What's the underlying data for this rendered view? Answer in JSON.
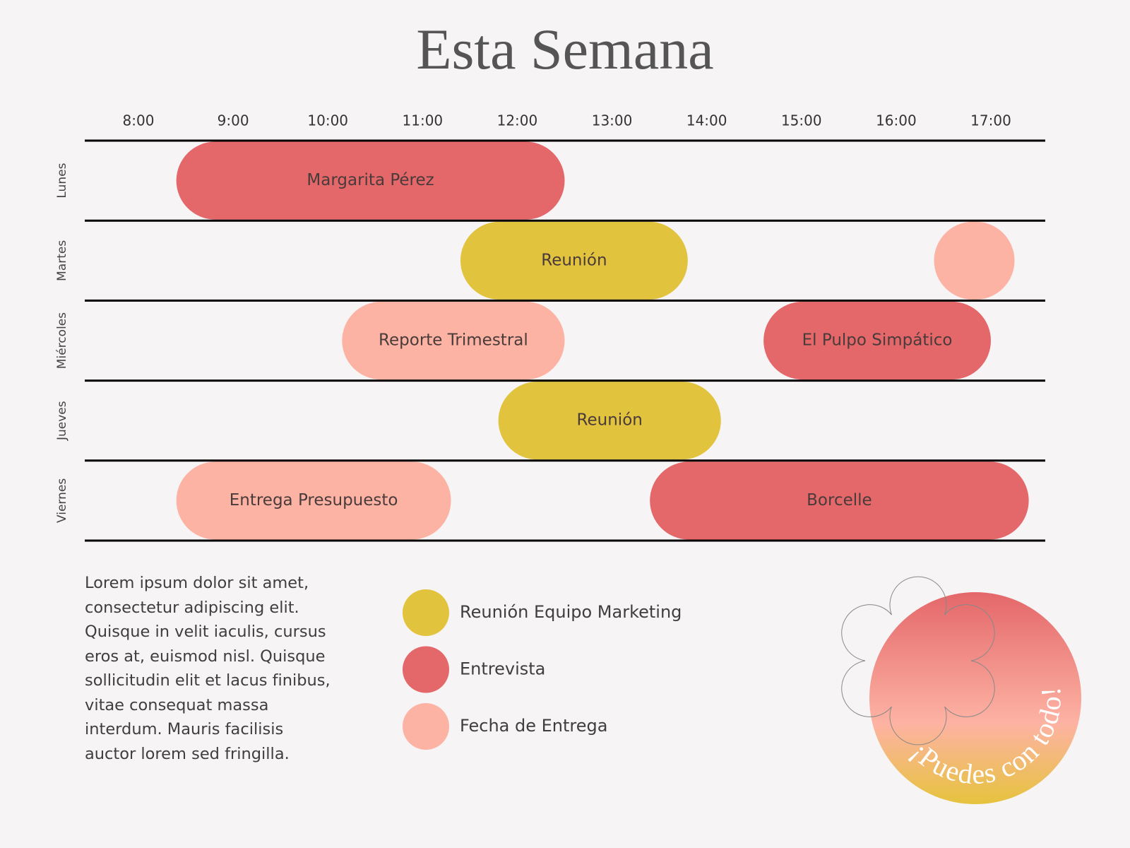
{
  "title": "Esta Semana",
  "hours": [
    {
      "value": 8,
      "label": "8:00"
    },
    {
      "value": 9,
      "label": "9:00"
    },
    {
      "value": 10,
      "label": "10:00"
    },
    {
      "value": 11,
      "label": "11:00"
    },
    {
      "value": 12,
      "label": "12:00"
    },
    {
      "value": 13,
      "label": "13:00"
    },
    {
      "value": 14,
      "label": "14:00"
    },
    {
      "value": 15,
      "label": "15:00"
    },
    {
      "value": 16,
      "label": "16:00"
    },
    {
      "value": 17,
      "label": "17:00"
    }
  ],
  "days": [
    {
      "name": "Lunes",
      "events": [
        {
          "label": "Margarita Pérez",
          "start": 8.4,
          "end": 12.5,
          "color": "#e4676a"
        }
      ]
    },
    {
      "name": "Martes",
      "events": [
        {
          "label": "Reunión",
          "start": 11.4,
          "end": 13.8,
          "color": "#e2c33d"
        },
        {
          "start": 16.4,
          "end": 17.25,
          "color": "#fdb3a3"
        }
      ]
    },
    {
      "name": "Miércoles",
      "events": [
        {
          "label": "Reporte Trimestral",
          "start": 10.15,
          "end": 12.5,
          "color": "#fdb3a3"
        },
        {
          "label": "El Pulpo Simpático",
          "start": 14.6,
          "end": 17,
          "color": "#e4676a"
        }
      ]
    },
    {
      "name": "Jueves",
      "events": [
        {
          "label": "Reunión",
          "start": 11.8,
          "end": 14.15,
          "color": "#e2c33d"
        }
      ]
    },
    {
      "name": "Viernes",
      "events": [
        {
          "label": "Entrega Presupuesto",
          "start": 8.4,
          "end": 11.3,
          "color": "#fdb3a3"
        },
        {
          "label": "Borcelle",
          "start": 13.4,
          "end": 17.4,
          "color": "#e4676a"
        }
      ]
    }
  ],
  "text": "Lorem ipsum dolor sit amet, consectetur adipiscing elit. Quisque in velit iaculis, cursus eros at, euismod nisl. Quisque sollicitudin elit et lacus finibus, vitae consequat massa interdum. Mauris facilisis auctor lorem sed fringilla.",
  "legend": [
    {
      "label": "Reunión Equipo Marketing",
      "color": "#e2c33d"
    },
    {
      "label": "Entrevista",
      "color": "#e4676a"
    },
    {
      "label": "Fecha de Entrega",
      "color": "#fdb3a3"
    }
  ],
  "badge": "¡Puedes con todo!"
}
